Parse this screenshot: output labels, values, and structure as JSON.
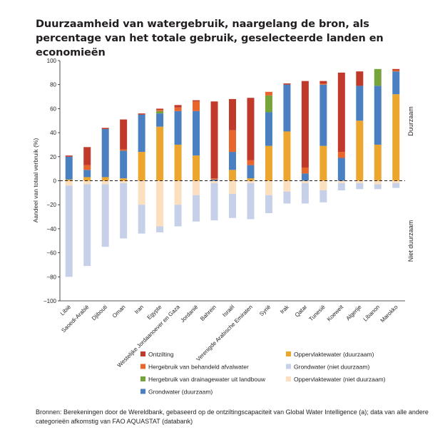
{
  "title": "Duurzaamheid van watergebruik, naargelang de bron, als percentage van het totale gebruik, geselecteerde landen en economieën",
  "source": "Bronnen: Berekeningen door de Wereldbank, gebaseerd op de ontziltingscapaciteit  van Global Water Intelligence (a); data van alle andere categorieën afkomstig van FAO AQUASTAT (databank)",
  "chart_data": {
    "type": "bar",
    "stacked": true,
    "ylabel": "Aandeel van totaal verbruik (%)",
    "ylim": [
      -100,
      100
    ],
    "yticks": [
      -100,
      -80,
      -60,
      -40,
      -20,
      0,
      20,
      40,
      60,
      80,
      100
    ],
    "side_labels": {
      "top": "Duurzaam",
      "bottom": "Niet duurzaam"
    },
    "categories": [
      "Libië",
      "Saoedi-Arabië",
      "Djibouti",
      "Oman",
      "Iran",
      "Egypte",
      "Westelijke Jordaanoever en Gaza",
      "Jordanië",
      "Bahrein",
      "Israël",
      "Verenigde Arabische Emiraten",
      "Syrië",
      "Irak",
      "Qatar",
      "Tunesië",
      "Koeweit",
      "Algerije",
      "Libanon",
      "Marokko"
    ],
    "legend": [
      {
        "name": "Ontzilting",
        "color": "#c0392b"
      },
      {
        "name": "Hergebruik van behandeld afvalwater",
        "color": "#e8652c"
      },
      {
        "name": "Hergebruik van drainagewater uit landbouw",
        "color": "#76a33a"
      },
      {
        "name": "Grondwater (duurzaam)",
        "color": "#4a7fc1"
      },
      {
        "name": "Oppervlaktewater (duurzaam)",
        "color": "#eca62e"
      },
      {
        "name": "Grondwater (niet duurzaam)",
        "color": "#c6d0e8"
      },
      {
        "name": "Oppervlaktewater (niet duurzaam)",
        "color": "#fbdfbe"
      }
    ],
    "positive_stack_order": [
      "Oppervlaktewater (duurzaam)",
      "Grondwater (duurzaam)",
      "Hergebruik van drainagewater uit landbouw",
      "Hergebruik van behandeld afvalwater",
      "Ontzilting"
    ],
    "negative_stack_order": [
      "Oppervlaktewater (niet duurzaam)",
      "Grondwater (niet duurzaam)"
    ],
    "series": [
      {
        "name": "Ontzilting",
        "values": [
          1,
          15,
          1,
          25,
          1,
          1,
          2,
          1,
          64,
          26,
          52,
          0,
          1,
          72,
          2,
          66,
          12,
          0,
          1
        ]
      },
      {
        "name": "Hergebruik van behandeld afvalwater",
        "values": [
          0,
          4,
          0,
          1,
          0,
          1,
          3,
          8,
          1,
          18,
          4,
          3,
          0,
          5,
          1,
          5,
          0,
          0,
          1
        ]
      },
      {
        "name": "Hergebruik van drainagewater uit landbouw",
        "values": [
          0,
          0,
          0,
          0,
          0,
          2,
          0,
          0,
          0,
          0,
          0,
          14,
          0,
          0,
          0,
          0,
          0,
          14,
          0
        ]
      },
      {
        "name": "Grondwater (duurzaam)",
        "values": [
          19,
          6,
          40,
          23,
          31,
          11,
          28,
          37,
          1,
          15,
          11,
          28,
          39,
          6,
          51,
          19,
          29,
          49,
          19
        ]
      },
      {
        "name": "Oppervlaktewater (duurzaam)",
        "values": [
          1,
          3,
          3,
          2,
          24,
          45,
          30,
          21,
          0,
          9,
          2,
          29,
          41,
          0,
          29,
          0,
          50,
          30,
          72
        ]
      },
      {
        "name": "Grondwater (niet duurzaam)",
        "values": [
          -76,
          -68,
          -52,
          -46,
          -24,
          -5,
          -18,
          -22,
          -31,
          -20,
          -30,
          -15,
          -10,
          -17,
          -10,
          -6,
          -5,
          -4,
          -4
        ]
      },
      {
        "name": "Oppervlaktewater (niet duurzaam)",
        "values": [
          -4,
          -3,
          -3,
          -2,
          -20,
          -38,
          -20,
          -12,
          -2,
          -11,
          -2,
          -12,
          -9,
          -2,
          -8,
          -2,
          -2,
          -3,
          -2
        ]
      }
    ]
  }
}
